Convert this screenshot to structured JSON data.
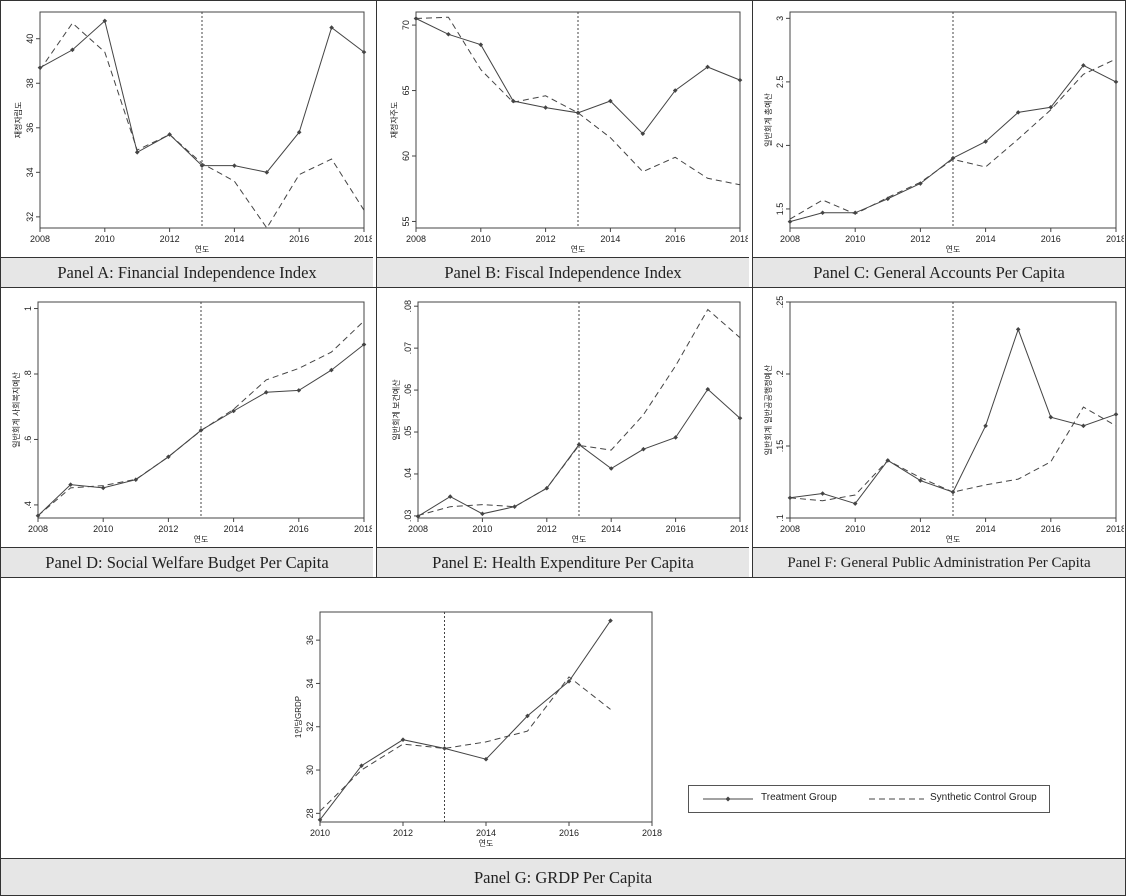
{
  "legend": {
    "treatment": "Treatment Group",
    "synthetic": "Synthetic Control Group"
  },
  "colors": {
    "line": "#444444",
    "caption_bg": "#e6e6e6",
    "border": "#333333"
  },
  "chart_data": [
    {
      "panel": "A",
      "type": "line",
      "caption": "Panel A: Financial Independence Index",
      "xlabel": "연도",
      "ylabel": "재정자립도",
      "xlim": [
        2008,
        2018
      ],
      "xticks": [
        2008,
        2010,
        2012,
        2014,
        2016,
        2018
      ],
      "ylim": [
        31.5,
        41.2
      ],
      "yticks": [
        32,
        34,
        36,
        38,
        40
      ],
      "yticklabels": [
        "32",
        "34",
        "36",
        "38",
        "40"
      ],
      "x": [
        2008,
        2009,
        2010,
        2011,
        2012,
        2013,
        2014,
        2015,
        2016,
        2017,
        2018
      ],
      "intervention": 2013,
      "series": [
        {
          "name": "Treatment Group",
          "style": "solid",
          "values": [
            38.7,
            39.5,
            40.8,
            34.9,
            35.7,
            34.3,
            34.3,
            34.0,
            35.8,
            40.5,
            39.4
          ]
        },
        {
          "name": "Synthetic Control Group",
          "style": "dashed",
          "values": [
            38.6,
            40.7,
            39.4,
            35.0,
            35.7,
            34.4,
            33.6,
            31.5,
            33.9,
            34.6,
            32.3
          ]
        }
      ]
    },
    {
      "panel": "B",
      "type": "line",
      "caption": "Panel B: Fiscal Independence Index",
      "xlabel": "연도",
      "ylabel": "재정자주도",
      "xlim": [
        2008,
        2018
      ],
      "xticks": [
        2008,
        2010,
        2012,
        2014,
        2016,
        2018
      ],
      "ylim": [
        54.5,
        71
      ],
      "yticks": [
        55,
        60,
        65,
        70
      ],
      "yticklabels": [
        "55",
        "60",
        "65",
        "70"
      ],
      "x": [
        2008,
        2009,
        2010,
        2011,
        2012,
        2013,
        2014,
        2015,
        2016,
        2017,
        2018
      ],
      "intervention": 2013,
      "series": [
        {
          "name": "Treatment Group",
          "style": "solid",
          "values": [
            70.5,
            69.3,
            68.5,
            64.2,
            63.7,
            63.3,
            64.2,
            61.7,
            65.0,
            66.8,
            65.8
          ]
        },
        {
          "name": "Synthetic Control Group",
          "style": "dashed",
          "values": [
            70.5,
            70.6,
            66.6,
            64.1,
            64.6,
            63.3,
            61.4,
            58.8,
            59.9,
            58.3,
            57.8
          ]
        }
      ]
    },
    {
      "panel": "C",
      "type": "line",
      "caption": "Panel C: General Accounts Per Capita",
      "xlabel": "연도",
      "ylabel": "일반회계 총예산",
      "xlim": [
        2008,
        2018
      ],
      "xticks": [
        2008,
        2010,
        2012,
        2014,
        2016,
        2018
      ],
      "ylim": [
        1.35,
        3.05
      ],
      "yticks": [
        1.5,
        2,
        2.5,
        3
      ],
      "yticklabels": [
        "1.5",
        "2",
        "2.5",
        "3"
      ],
      "x": [
        2008,
        2009,
        2010,
        2011,
        2012,
        2013,
        2014,
        2015,
        2016,
        2017,
        2018
      ],
      "intervention": 2013,
      "series": [
        {
          "name": "Treatment Group",
          "style": "solid",
          "values": [
            1.4,
            1.47,
            1.47,
            1.58,
            1.7,
            1.9,
            2.03,
            2.26,
            2.3,
            2.63,
            2.5
          ]
        },
        {
          "name": "Synthetic Control Group",
          "style": "dashed",
          "values": [
            1.42,
            1.57,
            1.46,
            1.59,
            1.71,
            1.89,
            1.83,
            2.05,
            2.28,
            2.56,
            2.68
          ]
        }
      ]
    },
    {
      "panel": "D",
      "type": "line",
      "caption": "Panel D: Social Welfare Budget Per Capita",
      "xlabel": "연도",
      "ylabel": "일반회계 사회복지예산",
      "xlim": [
        2008,
        2018
      ],
      "xticks": [
        2008,
        2010,
        2012,
        2014,
        2016,
        2018
      ],
      "ylim": [
        0.36,
        1.02
      ],
      "yticks": [
        0.4,
        0.6,
        0.8,
        1
      ],
      "yticklabels": [
        ".4",
        ".6",
        ".8",
        "1"
      ],
      "x": [
        2008,
        2009,
        2010,
        2011,
        2012,
        2013,
        2014,
        2015,
        2016,
        2017,
        2018
      ],
      "intervention": 2013,
      "series": [
        {
          "name": "Treatment Group",
          "style": "solid",
          "values": [
            0.367,
            0.462,
            0.452,
            0.477,
            0.547,
            0.628,
            0.687,
            0.744,
            0.75,
            0.812,
            0.89
          ]
        },
        {
          "name": "Synthetic Control Group",
          "style": "dashed",
          "values": [
            0.367,
            0.452,
            0.459,
            0.478,
            0.547,
            0.627,
            0.692,
            0.782,
            0.817,
            0.867,
            0.962
          ]
        }
      ]
    },
    {
      "panel": "E",
      "type": "line",
      "caption": "Panel E: Health Expenditure Per Capita",
      "xlabel": "연도",
      "ylabel": "일반회계 보건예산",
      "xlim": [
        2008,
        2018
      ],
      "xticks": [
        2008,
        2010,
        2012,
        2014,
        2016,
        2018
      ],
      "ylim": [
        0.0295,
        0.081
      ],
      "yticks": [
        0.03,
        0.04,
        0.05,
        0.06,
        0.07,
        0.08
      ],
      "yticklabels": [
        ".03",
        ".04",
        ".05",
        ".06",
        ".07",
        ".08"
      ],
      "x": [
        2008,
        2009,
        2010,
        2011,
        2012,
        2013,
        2014,
        2015,
        2016,
        2017,
        2018
      ],
      "intervention": 2013,
      "series": [
        {
          "name": "Treatment Group",
          "style": "solid",
          "values": [
            0.0299,
            0.0346,
            0.0305,
            0.0322,
            0.0366,
            0.047,
            0.0413,
            0.0459,
            0.0487,
            0.0602,
            0.0533
          ]
        },
        {
          "name": "Synthetic Control Group",
          "style": "dashed",
          "values": [
            0.0301,
            0.0322,
            0.0327,
            0.0322,
            0.0366,
            0.0468,
            0.0457,
            0.0541,
            0.0658,
            0.0792,
            0.0725
          ]
        }
      ]
    },
    {
      "panel": "F",
      "type": "line",
      "caption": "Panel F: General Public Administration Per Capita",
      "xlabel": "연도",
      "ylabel": "일반회계 일반공공행정예산",
      "xlim": [
        2008,
        2018
      ],
      "xticks": [
        2008,
        2010,
        2012,
        2014,
        2016,
        2018
      ],
      "ylim": [
        0.1,
        0.25
      ],
      "yticks": [
        0.1,
        0.15,
        0.2,
        0.25
      ],
      "yticklabels": [
        ".1",
        ".15",
        ".2",
        ".25"
      ],
      "x": [
        2008,
        2009,
        2010,
        2011,
        2012,
        2013,
        2014,
        2015,
        2016,
        2017,
        2018
      ],
      "intervention": 2013,
      "series": [
        {
          "name": "Treatment Group",
          "style": "solid",
          "values": [
            0.114,
            0.117,
            0.11,
            0.14,
            0.126,
            0.118,
            0.164,
            0.231,
            0.17,
            0.164,
            0.172
          ]
        },
        {
          "name": "Synthetic Control Group",
          "style": "dashed",
          "values": [
            0.114,
            0.112,
            0.116,
            0.14,
            0.128,
            0.118,
            0.123,
            0.127,
            0.139,
            0.177,
            0.164
          ]
        }
      ]
    },
    {
      "panel": "G",
      "type": "line",
      "caption": "Panel G: GRDP Per Capita",
      "xlabel": "연도",
      "ylabel": "1인당GRDP",
      "xlim": [
        2010,
        2018
      ],
      "xticks": [
        2010,
        2012,
        2014,
        2016,
        2018
      ],
      "ylim": [
        27.6,
        37.3
      ],
      "yticks": [
        28,
        30,
        32,
        34,
        36
      ],
      "yticklabels": [
        "28",
        "30",
        "32",
        "34",
        "36"
      ],
      "x": [
        2010,
        2011,
        2012,
        2013,
        2014,
        2015,
        2016,
        2017
      ],
      "intervention": 2013,
      "series": [
        {
          "name": "Treatment Group",
          "style": "solid",
          "values": [
            27.7,
            30.2,
            31.4,
            31.0,
            30.5,
            32.5,
            34.1,
            36.9
          ]
        },
        {
          "name": "Synthetic Control Group",
          "style": "dashed",
          "values": [
            28.1,
            30.0,
            31.2,
            31.0,
            31.3,
            31.8,
            34.3,
            32.8
          ]
        }
      ]
    }
  ]
}
